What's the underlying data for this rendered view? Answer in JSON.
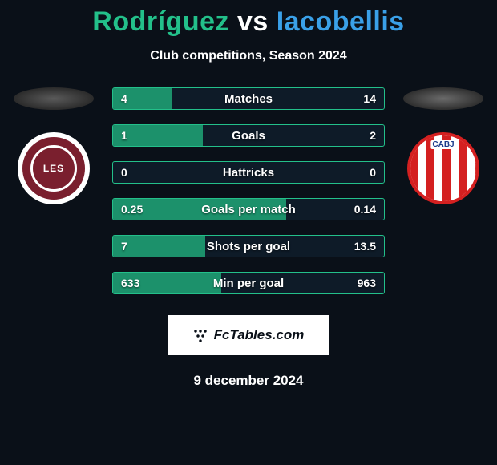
{
  "title": {
    "player1": "Rodríguez",
    "vs": "vs",
    "player2": "Iacobellis",
    "player1_color": "#23c08a",
    "vs_color": "#ffffff",
    "player2_color": "#3aa0e8"
  },
  "subtitle": "Club competitions, Season 2024",
  "badges": {
    "left": {
      "text": "LES",
      "bg": "#7a1f2e",
      "ring": "#ffffff"
    },
    "right": {
      "text": "CABJ",
      "stripe_a": "#d42020",
      "stripe_b": "#ffffff"
    }
  },
  "stats": {
    "border_color_left": "#23c08a",
    "fill_color_left": "#1e9e72",
    "border_color_right": "#3aa0e8",
    "rows": [
      {
        "label": "Matches",
        "left": "4",
        "right": "14",
        "left_pct": 22
      },
      {
        "label": "Goals",
        "left": "1",
        "right": "2",
        "left_pct": 33
      },
      {
        "label": "Hattricks",
        "left": "0",
        "right": "0",
        "left_pct": 0
      },
      {
        "label": "Goals per match",
        "left": "0.25",
        "right": "0.14",
        "left_pct": 64
      },
      {
        "label": "Shots per goal",
        "left": "7",
        "right": "13.5",
        "left_pct": 34
      },
      {
        "label": "Min per goal",
        "left": "633",
        "right": "963",
        "left_pct": 40
      }
    ]
  },
  "footer_brand": "FcTables.com",
  "date": "9 december 2024",
  "colors": {
    "page_bg": "#0a1018",
    "text": "#ffffff"
  }
}
